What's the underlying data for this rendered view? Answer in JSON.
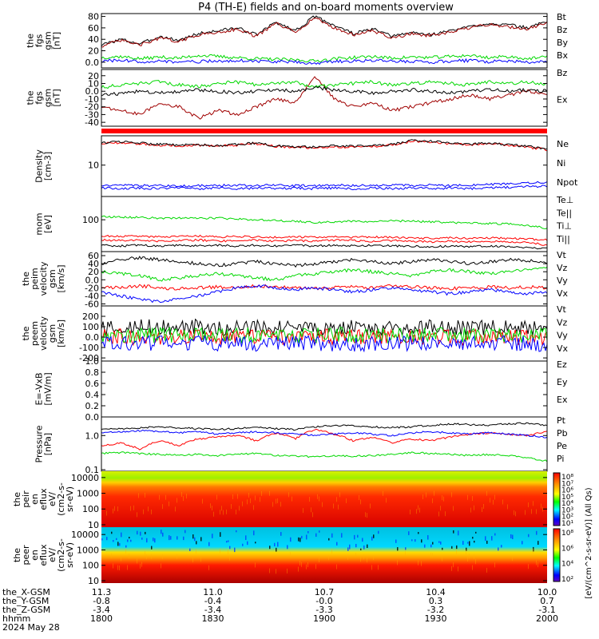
{
  "title": "P4 (TH-E) fields and on-board moments overview",
  "colors": {
    "black": "#000000",
    "red": "#ff0000",
    "green": "#00d800",
    "blue": "#0000ff",
    "darkred": "#a00000"
  },
  "chart_data": [
    {
      "type": "line",
      "ylabel": [
        "the",
        "fgs",
        "gsm",
        "[nT]"
      ],
      "yticks": [
        80,
        60,
        40,
        20,
        0
      ],
      "ylim": [
        -10,
        85
      ],
      "scale": "linear",
      "series": [
        {
          "name": "Bt",
          "color": "black",
          "values": [
            30,
            40,
            32,
            45,
            38,
            50,
            55,
            60,
            48,
            70,
            55,
            80,
            65,
            50,
            58,
            45,
            52,
            48,
            55,
            62,
            68,
            65,
            60,
            72
          ]
        },
        {
          "name": "Bz",
          "color": "darkred",
          "values": [
            28,
            38,
            30,
            42,
            36,
            48,
            52,
            58,
            45,
            68,
            52,
            78,
            60,
            48,
            55,
            42,
            50,
            46,
            52,
            60,
            66,
            62,
            58,
            70
          ]
        },
        {
          "name": "By",
          "color": "green",
          "values": [
            8,
            10,
            6,
            9,
            7,
            12,
            10,
            8,
            6,
            5,
            4,
            2,
            6,
            8,
            10,
            7,
            9,
            8,
            10,
            12,
            8,
            10,
            6,
            9
          ]
        },
        {
          "name": "Bx",
          "color": "blue",
          "values": [
            2,
            3,
            1,
            2,
            0,
            1,
            2,
            3,
            2,
            1,
            0,
            -2,
            1,
            2,
            3,
            2,
            1,
            0,
            2,
            3,
            1,
            2,
            0,
            1
          ]
        }
      ]
    },
    {
      "type": "line",
      "ylabel": [
        "the",
        "fgs",
        "gsm",
        "[nT]"
      ],
      "yticks": [
        20,
        10,
        0,
        -10,
        -20,
        -30,
        -40
      ],
      "ylim": [
        -45,
        28
      ],
      "scale": "linear",
      "series": [
        {
          "name": "Bz",
          "color": "darkred",
          "values": [
            -20,
            -25,
            -30,
            -15,
            -20,
            -35,
            -25,
            -30,
            -20,
            -10,
            -15,
            20,
            -10,
            -20,
            -15,
            -25,
            -20,
            -15,
            -10,
            -5,
            -10,
            -5,
            0,
            -5
          ]
        },
        {
          "name": "Ex",
          "color": "green",
          "values": [
            5,
            8,
            10,
            12,
            8,
            6,
            10,
            12,
            8,
            10,
            12,
            5,
            8,
            10,
            12,
            8,
            10,
            12,
            10,
            8,
            12,
            10,
            12,
            8
          ]
        },
        {
          "name": "",
          "color": "black",
          "values": [
            -5,
            -3,
            0,
            -2,
            0,
            2,
            0,
            -2,
            0,
            2,
            0,
            5,
            2,
            0,
            -2,
            0,
            2,
            0,
            -2,
            0,
            2,
            0,
            2,
            0
          ]
        }
      ]
    },
    {
      "type": "line",
      "ylabel": [
        "Density",
        "[cm-3]"
      ],
      "yticks": [
        10
      ],
      "ylim": [
        2,
        45
      ],
      "scale": "log",
      "series": [
        {
          "name": "Ne",
          "color": "red",
          "values": [
            30,
            32,
            30,
            28,
            27,
            28,
            26,
            28,
            30,
            26,
            25,
            24,
            26,
            25,
            26,
            28,
            34,
            33,
            30,
            28,
            30,
            28,
            25,
            22
          ]
        },
        {
          "name": "Ni",
          "color": "black",
          "values": [
            31,
            33,
            31,
            29,
            28,
            29,
            27,
            29,
            31,
            27,
            26,
            25,
            27,
            26,
            27,
            29,
            35,
            34,
            31,
            29,
            31,
            29,
            26,
            23
          ]
        },
        {
          "name": "Npot",
          "color": "blue",
          "values": [
            3.5,
            3.6,
            3.5,
            3.5,
            3.4,
            3.5,
            3.5,
            3.6,
            3.5,
            3.6,
            3.5,
            3.5,
            3.6,
            3.5,
            3.5,
            3.6,
            3.5,
            3.6,
            3.5,
            3.6,
            3.7,
            3.8,
            4.0,
            4.1
          ]
        },
        {
          "name": "",
          "color": "blue",
          "values": [
            3.1,
            3.0,
            3.1,
            3.0,
            3.1,
            3.0,
            3.1,
            3.0,
            3.1,
            3.0,
            3.1,
            3.0,
            3.1,
            3.0,
            3.1,
            3.0,
            3.1,
            3.0,
            3.1,
            3.0,
            3.2,
            3.2,
            3.3,
            3.4
          ]
        }
      ]
    },
    {
      "type": "line",
      "ylabel": [
        "mom",
        "[eV]"
      ],
      "yticks": [
        100
      ],
      "ylim": [
        15,
        400
      ],
      "scale": "log",
      "series": [
        {
          "name": "Te⊥",
          "color": "red",
          "values": [
            30,
            29,
            30,
            28,
            29,
            30,
            28,
            29,
            30,
            28,
            29,
            28,
            30,
            29,
            28,
            29,
            28,
            27,
            28,
            27,
            28,
            27,
            26,
            22
          ]
        },
        {
          "name": "Te||",
          "color": "black",
          "values": [
            22,
            21,
            22,
            21,
            22,
            21,
            22,
            21,
            22,
            21,
            22,
            21,
            22,
            21,
            22,
            21,
            21,
            20,
            21,
            20,
            21,
            20,
            19,
            18
          ]
        },
        {
          "name": "Ti⊥",
          "color": "red",
          "values": [
            38,
            37,
            38,
            36,
            37,
            38,
            36,
            37,
            36,
            35,
            36,
            35,
            36,
            35,
            36,
            35,
            34,
            33,
            34,
            33,
            34,
            33,
            32,
            30
          ]
        },
        {
          "name": "Ti||",
          "color": "green",
          "values": [
            120,
            118,
            115,
            110,
            112,
            108,
            110,
            105,
            100,
            95,
            92,
            85,
            88,
            92,
            90,
            95,
            92,
            88,
            85,
            82,
            80,
            78,
            72,
            60
          ]
        }
      ]
    },
    {
      "type": "line",
      "ylabel": [
        "the",
        "peim",
        "velocity",
        "gsm",
        "[km/s]"
      ],
      "yticks": [
        60,
        40,
        20,
        0,
        -20,
        -40,
        -60
      ],
      "ylim": [
        -65,
        70
      ],
      "scale": "linear",
      "series": [
        {
          "name": "Vt",
          "color": "black",
          "values": [
            40,
            50,
            55,
            50,
            45,
            40,
            35,
            40,
            45,
            40,
            35,
            40,
            45,
            50,
            45,
            40,
            45,
            50,
            45,
            40,
            45,
            50,
            48,
            45
          ]
        },
        {
          "name": "Vz",
          "color": "red",
          "values": [
            -20,
            -18,
            -15,
            -20,
            -22,
            -20,
            -18,
            -20,
            -15,
            -18,
            -20,
            -22,
            -20,
            -18,
            -20,
            -15,
            -18,
            -20,
            -22,
            -20,
            -18,
            -20,
            -18,
            -20
          ]
        },
        {
          "name": "Vy",
          "color": "green",
          "values": [
            20,
            15,
            10,
            0,
            5,
            10,
            15,
            10,
            5,
            0,
            10,
            15,
            20,
            25,
            20,
            15,
            10,
            20,
            25,
            20,
            15,
            20,
            25,
            30
          ]
        },
        {
          "name": "Vx",
          "color": "blue",
          "values": [
            -30,
            -40,
            -50,
            -55,
            -45,
            -40,
            -30,
            -20,
            -15,
            -20,
            -25,
            -20,
            -25,
            -30,
            -25,
            -20,
            -25,
            -30,
            -35,
            -30,
            -25,
            -30,
            -35,
            -30
          ]
        }
      ]
    },
    {
      "type": "line",
      "ylabel": [
        "the",
        "peem",
        "velocity",
        "gsm",
        "[km/s]"
      ],
      "yticks": [
        200,
        100,
        0,
        -100,
        -200
      ],
      "ylim": [
        -230,
        300
      ],
      "scale": "linear",
      "series": [
        {
          "name": "Vt",
          "color": "black",
          "values": [
            80,
            90,
            100,
            95,
            90,
            100,
            85,
            90,
            100,
            95,
            90,
            85,
            90,
            100,
            95,
            90,
            95,
            100,
            90,
            85,
            95,
            100,
            90,
            85
          ]
        },
        {
          "name": "Vz",
          "color": "red",
          "values": [
            0,
            5,
            -5,
            0,
            5,
            0,
            -5,
            0,
            5,
            0,
            -5,
            0,
            5,
            0,
            -5,
            0,
            5,
            0,
            -5,
            0,
            5,
            0,
            -5,
            0
          ]
        },
        {
          "name": "Vy",
          "color": "green",
          "values": [
            20,
            25,
            15,
            20,
            25,
            20,
            15,
            20,
            25,
            20,
            15,
            20,
            25,
            20,
            15,
            20,
            25,
            20,
            15,
            20,
            25,
            20,
            15,
            20
          ]
        },
        {
          "name": "Vx",
          "color": "blue",
          "values": [
            -60,
            -70,
            -50,
            -60,
            -70,
            -55,
            -60,
            -65,
            -70,
            -60,
            -55,
            -60,
            -65,
            -70,
            -60,
            -55,
            -60,
            -65,
            -70,
            -60,
            -55,
            -60,
            -65,
            -70
          ]
        }
      ]
    },
    {
      "type": "line",
      "ylabel": [
        "E=-VxB",
        "[mV/m]"
      ],
      "yticks": [
        1.0,
        0.8,
        0.6,
        0.4,
        0.2,
        0.0
      ],
      "ylim": [
        0,
        1
      ],
      "scale": "linear",
      "series": [
        {
          "name": "Ez",
          "color": "red",
          "values": []
        },
        {
          "name": "Ey",
          "color": "green",
          "values": []
        },
        {
          "name": "Ex",
          "color": "blue",
          "values": []
        }
      ]
    },
    {
      "type": "line",
      "ylabel": [
        "Pressure",
        "[nPa]"
      ],
      "yticks": [
        1.0,
        0.1
      ],
      "ylim": [
        0.09,
        3.5
      ],
      "scale": "log",
      "series": [
        {
          "name": "Pt",
          "color": "black",
          "values": [
            1.5,
            1.6,
            1.7,
            1.8,
            1.7,
            1.6,
            1.5,
            1.6,
            1.7,
            1.6,
            1.5,
            1.8,
            2.0,
            1.9,
            1.8,
            1.7,
            1.8,
            2.0,
            2.2,
            2.1,
            2.0,
            2.2,
            2.3,
            2.0
          ]
        },
        {
          "name": "Pb",
          "color": "red",
          "values": [
            0.5,
            0.6,
            0.4,
            0.7,
            0.5,
            0.8,
            0.9,
            1.0,
            0.7,
            1.2,
            0.8,
            1.5,
            1.1,
            0.7,
            0.9,
            0.6,
            0.8,
            0.7,
            0.9,
            1.1,
            1.2,
            1.1,
            1.0,
            1.3
          ]
        },
        {
          "name": "Pe",
          "color": "green",
          "values": [
            0.3,
            0.32,
            0.3,
            0.28,
            0.27,
            0.28,
            0.26,
            0.28,
            0.3,
            0.26,
            0.25,
            0.24,
            0.26,
            0.25,
            0.26,
            0.28,
            0.32,
            0.3,
            0.28,
            0.26,
            0.28,
            0.26,
            0.22,
            0.18
          ]
        },
        {
          "name": "Pi",
          "color": "blue",
          "values": [
            1.2,
            1.3,
            1.4,
            1.3,
            1.2,
            1.3,
            1.1,
            1.2,
            1.3,
            1.2,
            1.1,
            1.0,
            1.1,
            1.2,
            1.1,
            1.0,
            1.2,
            1.3,
            1.2,
            1.1,
            1.2,
            1.1,
            1.0,
            0.9
          ]
        }
      ]
    },
    {
      "type": "heatmap",
      "ylabel": [
        "the",
        "peir",
        "en",
        "eflux",
        "eV/",
        "(cm2-s-",
        "sr-eV)"
      ],
      "yticks": [
        10000,
        1000,
        100,
        10
      ],
      "ylim": [
        7,
        25000
      ],
      "scale": "log",
      "colorbar": {
        "label": "[eV/(cm^2-s-sr-eV)] (All Qs)",
        "ticks": [
          "10^8",
          "10^7",
          "10^6",
          "10^5",
          "10^4",
          "10^3",
          "10^2",
          "10^1"
        ]
      }
    },
    {
      "type": "heatmap",
      "ylabel": [
        "the",
        "peer",
        "en",
        "eflux",
        "eV/",
        "(cm2-s-",
        "sr-eV)"
      ],
      "yticks": [
        10000,
        1000,
        100,
        10
      ],
      "ylim": [
        7,
        30000
      ],
      "scale": "log",
      "colorbar": {
        "ticks": [
          "10^8",
          "10^6",
          "10^4",
          "10^2"
        ]
      }
    }
  ],
  "x_axis": {
    "rows": [
      {
        "label": "the_X-GSM",
        "values": [
          "11.3",
          "11.0",
          "10.7",
          "10.4",
          "10.0"
        ]
      },
      {
        "label": "the_Y-GSM",
        "values": [
          "-0.8",
          "-0.4",
          "-0.0",
          "0.3",
          "0.7"
        ]
      },
      {
        "label": "the_Z-GSM",
        "values": [
          "-3.4",
          "-3.4",
          "-3.3",
          "-3.2",
          "-3.1"
        ]
      },
      {
        "label": "hhmm",
        "values": [
          "1800",
          "1830",
          "1900",
          "1930",
          "2000"
        ]
      }
    ],
    "date": "2024 May 28"
  }
}
